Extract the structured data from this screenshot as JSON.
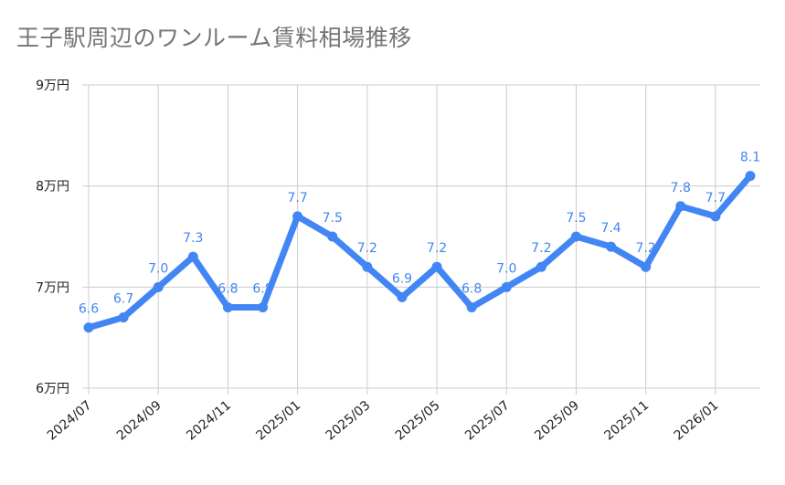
{
  "chart_data": {
    "type": "line",
    "title": "王子駅周辺のワンルーム賃料相場推移",
    "xlabel": "",
    "ylabel": "",
    "x": [
      "2024/07",
      "2024/08",
      "2024/09",
      "2024/10",
      "2024/11",
      "2024/12",
      "2025/01",
      "2025/02",
      "2025/03",
      "2025/04",
      "2025/05",
      "2025/06",
      "2025/07",
      "2025/08",
      "2025/09",
      "2025/10",
      "2025/11",
      "2025/12",
      "2026/01",
      "2026/02"
    ],
    "x_tick_labels": [
      "2024/07",
      "2024/09",
      "2024/11",
      "2025/01",
      "2025/03",
      "2025/05",
      "2025/07",
      "2025/09",
      "2025/11",
      "2026/01"
    ],
    "series": [
      {
        "name": "",
        "values": [
          6.6,
          6.7,
          7.0,
          7.3,
          6.8,
          6.8,
          7.7,
          7.5,
          7.2,
          6.9,
          7.2,
          6.8,
          7.0,
          7.2,
          7.5,
          7.4,
          7.2,
          7.8,
          7.7,
          8.1
        ],
        "labels": [
          "6.6",
          "6.7",
          "7.0",
          "7.3",
          "6.8",
          "6.8",
          "7.7",
          "7.5",
          "7.2",
          "6.9",
          "7.2",
          "6.8",
          "7.0",
          "7.2",
          "7.5",
          "7.4",
          "7.2",
          "7.8",
          "7.7",
          "8.1"
        ]
      }
    ],
    "ylim": [
      6,
      9
    ],
    "y_ticks": [
      6,
      7,
      8,
      9
    ],
    "y_tick_labels": [
      "6万円",
      "7万円",
      "8万円",
      "9万円"
    ],
    "grid": true,
    "legend": "none",
    "colors": {
      "line": "#4285f4",
      "label": "#4285f4",
      "grid": "#cccccc"
    }
  }
}
